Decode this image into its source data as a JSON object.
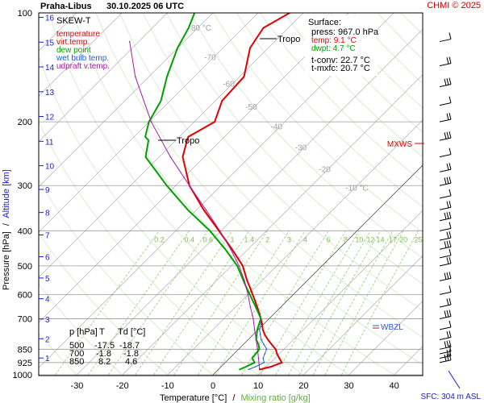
{
  "header": {
    "station": "Praha-Libus",
    "datetime": "30.10.2025 06 UTC",
    "copyright": "CHMI © 2025"
  },
  "legend": {
    "title": "SKEW-T",
    "items": [
      {
        "label": "temperature",
        "color": "#e00000"
      },
      {
        "label": "virt.temp.",
        "color": "#e00000"
      },
      {
        "label": "dew point",
        "color": "#00a000"
      },
      {
        "label": "wet bulb temp.",
        "color": "#2060d0"
      },
      {
        "label": "udpraft v.temp.",
        "color": "#a020a0"
      }
    ]
  },
  "surface_box": {
    "title": "Surface:",
    "press": "press: 967.0 hPa",
    "temp": "temp: 9.1 °C",
    "dwpt": "dwpt: 4.7 °C",
    "tconv": "t-conv: 22.7 °C",
    "tmxfc": "t-mxfc: 20.7 °C"
  },
  "labels": {
    "tropo_upper": "Tropo",
    "tropo_lower": "Tropo",
    "mxws": "MXWS",
    "wbzl": "WBZL",
    "sfc": "SFC: 304 m ASL",
    "y_axis_pressure": "Pressure [hPa]",
    "y_axis_sep": "/",
    "y_axis_altitude": "Altitude [km]",
    "x_axis_temp": "Temperature [°C]",
    "x_axis_sep": "/",
    "x_axis_mix": "Mixing ratio [g/kg]"
  },
  "colors": {
    "temperature": "#e00000",
    "dew_point": "#00a000",
    "wet_bulb": "#2060d0",
    "updraft": "#a020a0",
    "isotherm": "#b0b0b0",
    "mixing": "#90d070",
    "km_axis": "#1a1ad6"
  },
  "table": {
    "headers": [
      "p [hPa]",
      "T",
      "Td [°C]"
    ],
    "rows": [
      [
        "500",
        "-17.5",
        "-18.7"
      ],
      [
        "700",
        "-1.8",
        "-1.8"
      ],
      [
        "850",
        "8.2",
        "4.6"
      ]
    ]
  },
  "chart_data": {
    "type": "line",
    "title": "SKEW-T",
    "xlabel": "Temperature [°C] / Mixing ratio [g/kg]",
    "ylabel": "Pressure [hPa] / Altitude [km]",
    "x_ticks": [
      -30,
      -20,
      -10,
      0,
      10,
      20,
      30,
      40
    ],
    "xlim": [
      -35,
      43
    ],
    "ylim": [
      1000,
      100
    ],
    "y_scale": "log",
    "pressure_ticks": [
      100,
      200,
      300,
      400,
      500,
      600,
      700,
      850,
      925,
      1000
    ],
    "altitude_ticks_km": [
      1,
      2,
      3,
      4,
      5,
      6,
      7,
      8,
      9,
      10,
      11,
      12,
      13,
      14,
      15,
      16
    ],
    "isotherm_labels": [
      {
        "t": -80,
        "text": "-80 °C"
      },
      {
        "t": -70,
        "text": "-70"
      },
      {
        "t": -60,
        "text": "-60"
      },
      {
        "t": -50,
        "text": "-50"
      },
      {
        "t": -40,
        "text": "-40"
      },
      {
        "t": -30,
        "text": "-30"
      },
      {
        "t": -20,
        "text": "-20"
      },
      {
        "t": -10,
        "text": "-10 °C"
      }
    ],
    "mixing_ratio_labels": [
      "0.2",
      "0.4",
      "0.6",
      "1",
      "1.4",
      "2",
      "3",
      "4",
      "6",
      "8",
      "10",
      "12",
      "14",
      "17",
      "20",
      "25"
    ],
    "series": [
      {
        "name": "temperature",
        "p": [
          967,
          950,
          925,
          900,
          875,
          850,
          825,
          800,
          775,
          750,
          725,
          700,
          675,
          650,
          625,
          600,
          575,
          550,
          500,
          450,
          400,
          350,
          300,
          250,
          225,
          220,
          200,
          175,
          150,
          125,
          110,
          100
        ],
        "t": [
          9.1,
          11.0,
          12.5,
          11.0,
          9.5,
          8.2,
          6.3,
          4.4,
          2.6,
          1.0,
          -0.3,
          -1.8,
          -3.4,
          -5.2,
          -7.0,
          -9.0,
          -11.0,
          -13.2,
          -17.5,
          -23.5,
          -30.5,
          -38.5,
          -47.0,
          -54.8,
          -57.5,
          -58.0,
          -55.5,
          -58.5,
          -59.0,
          -64.0,
          -65.5,
          -63.0
        ]
      },
      {
        "name": "dew point",
        "p": [
          967,
          950,
          925,
          900,
          875,
          850,
          825,
          800,
          775,
          750,
          725,
          700,
          675,
          650,
          625,
          600,
          575,
          550,
          500,
          450,
          400,
          350,
          300,
          250,
          225,
          220,
          200,
          175,
          150,
          125,
          110,
          100
        ],
        "t": [
          4.7,
          5.5,
          6.5,
          5.0,
          4.8,
          4.6,
          3.4,
          1.8,
          0.8,
          -0.2,
          -1.0,
          -1.8,
          -3.6,
          -5.5,
          -7.5,
          -9.6,
          -11.8,
          -14.0,
          -18.7,
          -25.0,
          -32.5,
          -42.0,
          -52.0,
          -63.0,
          -66.0,
          -67.5,
          -70.0,
          -72.0,
          -76.0,
          -80.0,
          -82.0,
          -84.0
        ]
      },
      {
        "name": "wet bulb temp.",
        "p": [
          967,
          950,
          925,
          900,
          875,
          850,
          825,
          800,
          775,
          750,
          725,
          700
        ],
        "t": [
          6.7,
          7.6,
          8.6,
          7.4,
          6.8,
          6.2,
          4.6,
          2.9,
          1.6,
          0.3,
          -0.6,
          -1.8
        ]
      },
      {
        "name": "udpraft v.temp.",
        "p": [
          967,
          900,
          850,
          800,
          750,
          700,
          650,
          600,
          550,
          500,
          450,
          400,
          350,
          300,
          250,
          200,
          150,
          120
        ],
        "t": [
          9.1,
          6.4,
          4.2,
          1.8,
          -0.8,
          -3.5,
          -6.7,
          -10.0,
          -13.8,
          -18.3,
          -23.8,
          -30.3,
          -38.0,
          -47.0,
          -57.5,
          -69.5,
          -83.0,
          -92.0
        ]
      }
    ],
    "markers": [
      {
        "name": "Tropo",
        "p": 116
      },
      {
        "name": "Tropo",
        "p": 223
      },
      {
        "name": "MXWS",
        "p": 225
      },
      {
        "name": "WBZL",
        "p": 726
      }
    ]
  }
}
